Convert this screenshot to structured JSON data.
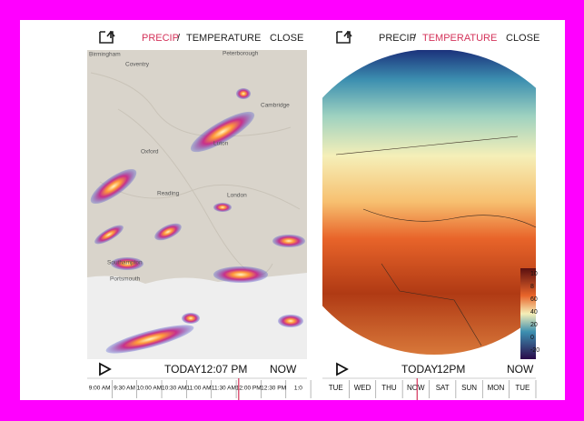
{
  "screens": [
    {
      "header": {
        "precip": "PRECIP",
        "slash": "/",
        "temperature": "TEMPERATURE",
        "close": "CLOSE"
      },
      "map_labels": [
        "Birmingham",
        "Coventry",
        "Peterborough",
        "Cambridge",
        "Oxford",
        "Luton",
        "Reading",
        "London",
        "Southampton",
        "Portsmouth"
      ],
      "footer": {
        "today": "TODAY",
        "time": "12:07 PM",
        "now": "NOW"
      },
      "timeline": [
        "9:00 AM",
        "9:30 AM",
        "10:00 AM",
        "10:30 AM",
        "11:00 AM",
        "11:30 AM",
        "12:00 PM",
        "12:30 PM",
        "1:0"
      ]
    },
    {
      "header": {
        "precip": "PRECIP",
        "slash": "/",
        "temperature": "TEMPERATURE",
        "close": "CLOSE"
      },
      "scale_labels": [
        "10",
        "8",
        "60",
        "40",
        "20",
        "0",
        "-20"
      ],
      "footer": {
        "today": "TODAY",
        "time": "12PM",
        "now": "NOW"
      },
      "timeline": [
        "TUE",
        "WED",
        "THU",
        "NOW",
        "SAT",
        "SUN",
        "MON",
        "TUE"
      ]
    }
  ]
}
